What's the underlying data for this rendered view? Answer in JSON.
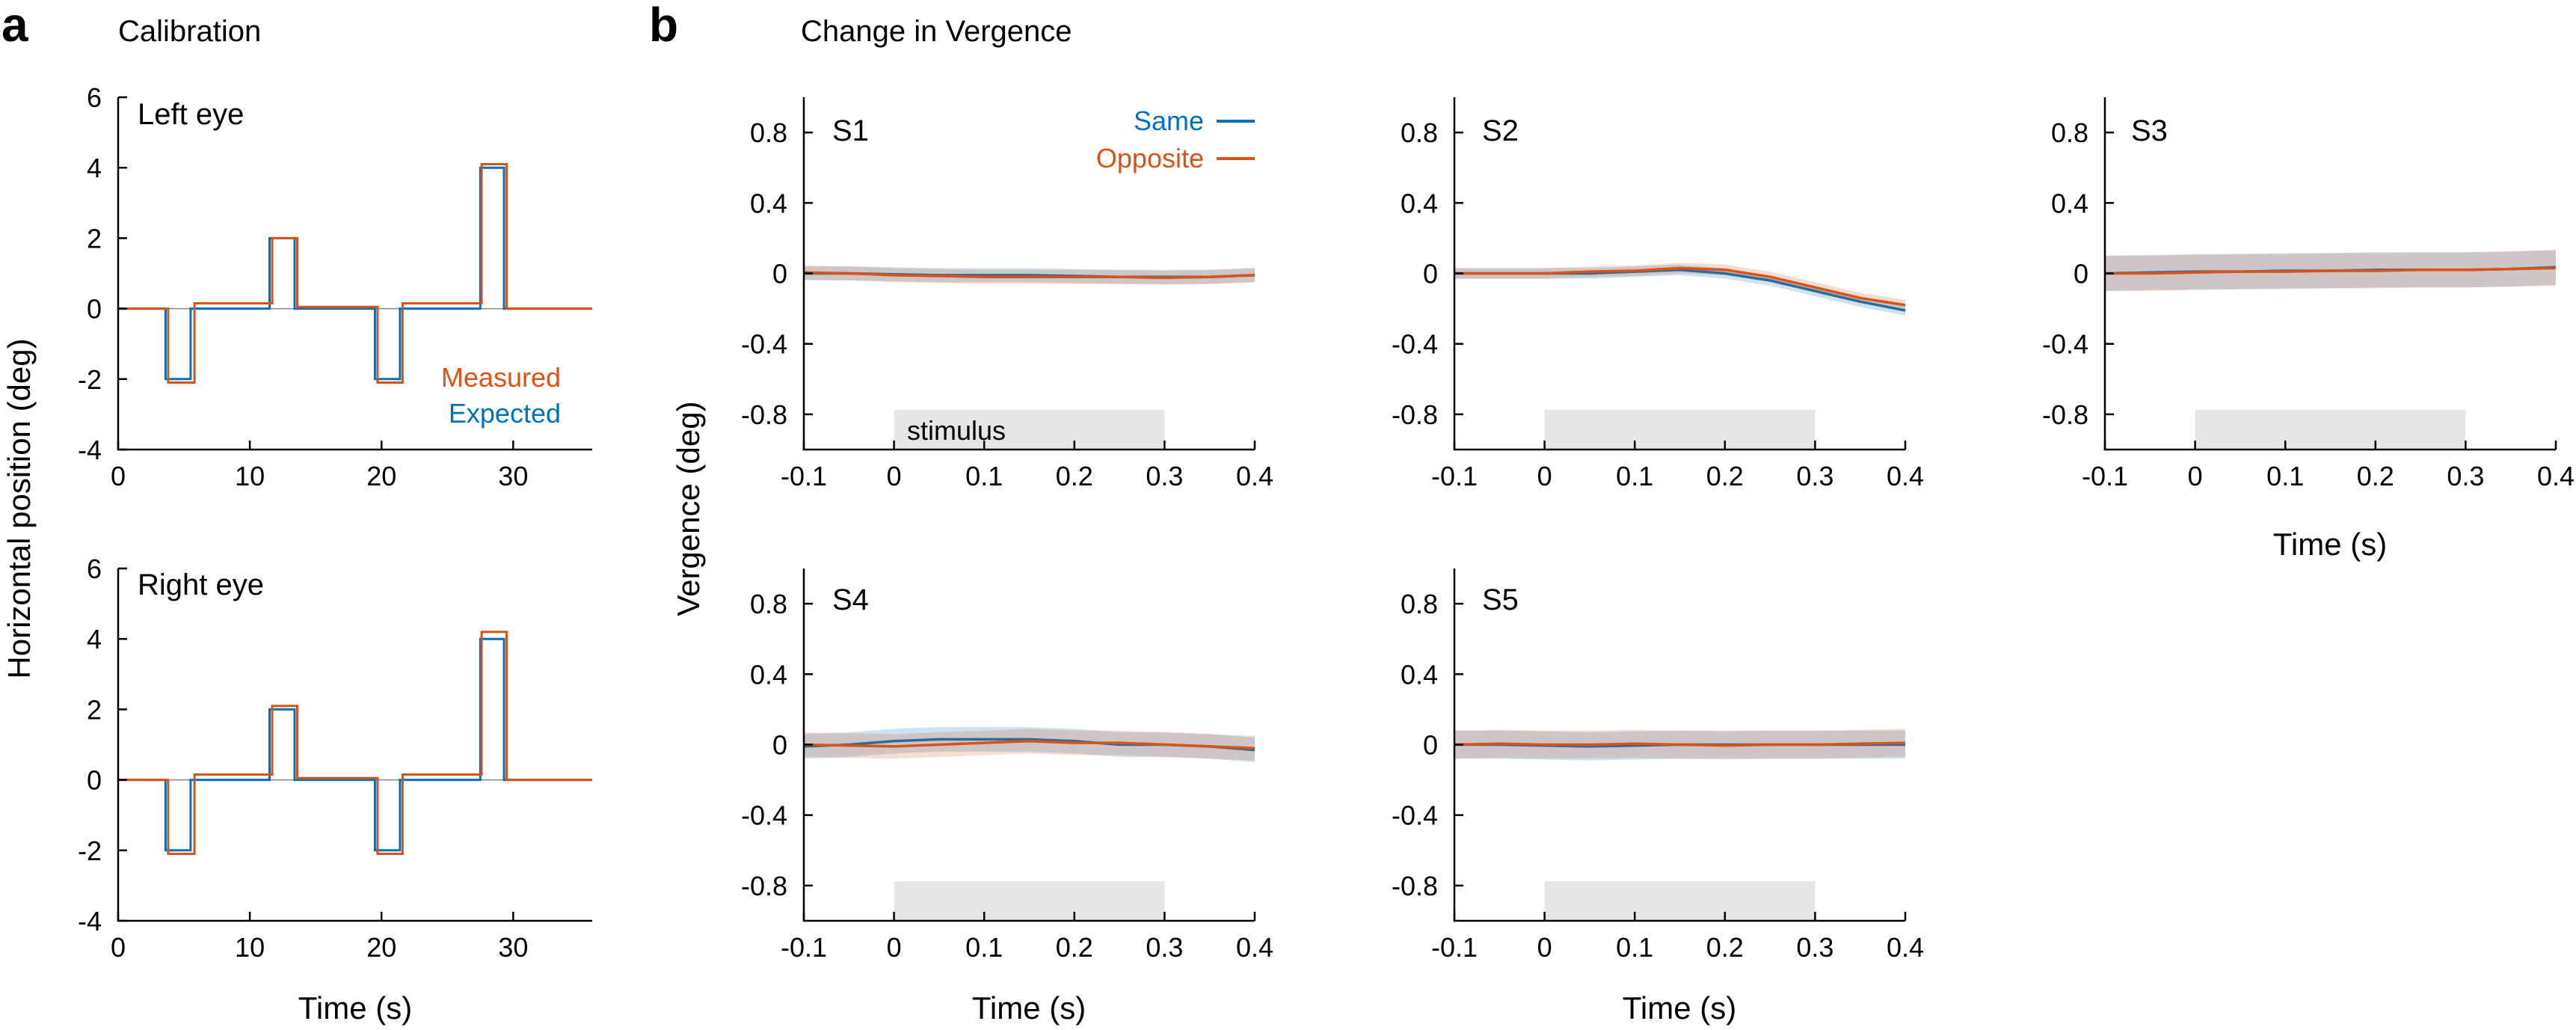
{
  "panel_a": {
    "letter": "a",
    "title": "Calibration",
    "ylabel": "Horizontal position (deg)",
    "xlabel": "Time (s)",
    "legend_measured": "Measured",
    "legend_expected": "Expected"
  },
  "panel_b": {
    "letter": "b",
    "title": "Change in Vergence",
    "ylabel": "Vergence (deg)",
    "xlabel": "Time (s)",
    "legend_same": "Same",
    "legend_opposite": "Opposite",
    "stimulus_label": "stimulus"
  },
  "colors": {
    "measured": "#d95319",
    "expected": "#0072bd",
    "same": "#0072bd",
    "opposite": "#d95319",
    "stimulus_bar": "#e6e6e6"
  },
  "chart_data": [
    {
      "id": "left-eye",
      "type": "line",
      "title": "Left eye",
      "xlabel": "",
      "ylabel": "Horizontal position (deg)",
      "xlim": [
        0,
        36
      ],
      "ylim": [
        -4,
        6
      ],
      "xticks": [
        0,
        10,
        20,
        30
      ],
      "yticks": [
        -4,
        -2,
        0,
        2,
        4,
        6
      ],
      "series": [
        {
          "name": "Expected",
          "step_x": [
            0,
            3.6,
            3.6,
            5.5,
            5.5,
            11.5,
            11.5,
            13.4,
            13.4,
            19.5,
            19.5,
            21.4,
            21.4,
            27.5,
            27.5,
            29.3,
            29.3,
            36
          ],
          "step_y": [
            0,
            0,
            -2,
            -2,
            0,
            0,
            2,
            2,
            0,
            0,
            -2,
            -2,
            0,
            0,
            4,
            4,
            0,
            0
          ]
        },
        {
          "name": "Measured",
          "step_x": [
            0,
            3.8,
            3.8,
            5.8,
            5.8,
            11.7,
            11.7,
            13.6,
            13.6,
            19.7,
            19.7,
            21.6,
            21.6,
            27.6,
            27.6,
            29.5,
            29.5,
            36
          ],
          "step_y": [
            0,
            0,
            -2.1,
            -2.1,
            0.15,
            0.15,
            2,
            2,
            0.05,
            0.05,
            -2.1,
            -2.1,
            0.15,
            0.15,
            4.1,
            4.1,
            0,
            0
          ]
        }
      ]
    },
    {
      "id": "right-eye",
      "type": "line",
      "title": "Right eye",
      "xlabel": "Time (s)",
      "ylabel": "Horizontal position (deg)",
      "xlim": [
        0,
        36
      ],
      "ylim": [
        -4,
        6
      ],
      "xticks": [
        0,
        10,
        20,
        30
      ],
      "yticks": [
        -4,
        -2,
        0,
        2,
        4,
        6
      ],
      "series": [
        {
          "name": "Expected",
          "step_x": [
            0,
            3.6,
            3.6,
            5.5,
            5.5,
            11.5,
            11.5,
            13.4,
            13.4,
            19.5,
            19.5,
            21.4,
            21.4,
            27.5,
            27.5,
            29.3,
            29.3,
            36
          ],
          "step_y": [
            0,
            0,
            -2,
            -2,
            0,
            0,
            2,
            2,
            0,
            0,
            -2,
            -2,
            0,
            0,
            4,
            4,
            0,
            0
          ]
        },
        {
          "name": "Measured",
          "step_x": [
            0,
            3.8,
            3.8,
            5.8,
            5.8,
            11.7,
            11.7,
            13.6,
            13.6,
            19.7,
            19.7,
            21.6,
            21.6,
            27.6,
            27.6,
            29.5,
            29.5,
            36
          ],
          "step_y": [
            0,
            0,
            -2.1,
            -2.1,
            0.15,
            0.15,
            2.1,
            2.1,
            0.05,
            0.05,
            -2.1,
            -2.1,
            0.15,
            0.15,
            4.2,
            4.2,
            0,
            0
          ]
        }
      ]
    },
    {
      "id": "S1",
      "type": "line",
      "title": "S1",
      "xlabel": "",
      "ylabel": "",
      "xlim": [
        -0.1,
        0.4
      ],
      "ylim": [
        -1,
        1
      ],
      "xticks": [
        -0.1,
        0,
        0.1,
        0.2,
        0.3,
        0.4
      ],
      "yticks": [
        -0.8,
        -0.4,
        0,
        0.4,
        0.8
      ],
      "stimulus": [
        0,
        0.3
      ],
      "x": [
        -0.1,
        -0.05,
        0,
        0.05,
        0.1,
        0.15,
        0.2,
        0.25,
        0.3,
        0.35,
        0.4
      ],
      "series": [
        {
          "name": "Same",
          "values": [
            0,
            0,
            -0.005,
            -0.01,
            -0.01,
            -0.01,
            -0.015,
            -0.02,
            -0.02,
            -0.02,
            -0.01
          ],
          "band": 0.04
        },
        {
          "name": "Opposite",
          "values": [
            0.005,
            0,
            -0.01,
            -0.015,
            -0.02,
            -0.02,
            -0.02,
            -0.02,
            -0.025,
            -0.02,
            -0.01
          ],
          "band": 0.04
        }
      ]
    },
    {
      "id": "S2",
      "type": "line",
      "title": "S2",
      "xlabel": "",
      "ylabel": "",
      "xlim": [
        -0.1,
        0.4
      ],
      "ylim": [
        -1,
        1
      ],
      "xticks": [
        -0.1,
        0,
        0.1,
        0.2,
        0.3,
        0.4
      ],
      "yticks": [
        -0.8,
        -0.4,
        0,
        0.4,
        0.8
      ],
      "stimulus": [
        0,
        0.3
      ],
      "x": [
        -0.1,
        -0.05,
        0,
        0.05,
        0.1,
        0.15,
        0.2,
        0.25,
        0.3,
        0.35,
        0.4
      ],
      "series": [
        {
          "name": "Same",
          "values": [
            0,
            0,
            0,
            0,
            0.01,
            0.02,
            0,
            -0.04,
            -0.1,
            -0.16,
            -0.21
          ],
          "band": 0.03
        },
        {
          "name": "Opposite",
          "values": [
            0,
            0,
            0,
            0.01,
            0.015,
            0.03,
            0.02,
            -0.02,
            -0.08,
            -0.14,
            -0.18
          ],
          "band": 0.03
        }
      ]
    },
    {
      "id": "S3",
      "type": "line",
      "title": "S3",
      "xlabel": "Time (s)",
      "ylabel": "",
      "xlim": [
        -0.1,
        0.4
      ],
      "ylim": [
        -1,
        1
      ],
      "xticks": [
        -0.1,
        0,
        0.1,
        0.2,
        0.3,
        0.4
      ],
      "yticks": [
        -0.8,
        -0.4,
        0,
        0.4,
        0.8
      ],
      "stimulus": [
        0,
        0.3
      ],
      "x": [
        -0.1,
        -0.05,
        0,
        0.05,
        0.1,
        0.15,
        0.2,
        0.25,
        0.3,
        0.35,
        0.4
      ],
      "series": [
        {
          "name": "Same",
          "values": [
            0,
            0.005,
            0.01,
            0.01,
            0.015,
            0.015,
            0.02,
            0.02,
            0.02,
            0.025,
            0.035
          ],
          "band": 0.1
        },
        {
          "name": "Opposite",
          "values": [
            0,
            0,
            0.005,
            0.01,
            0.01,
            0.015,
            0.015,
            0.02,
            0.02,
            0.025,
            0.03
          ],
          "band": 0.1
        }
      ]
    },
    {
      "id": "S4",
      "type": "line",
      "title": "S4",
      "xlabel": "Time (s)",
      "ylabel": "",
      "xlim": [
        -0.1,
        0.4
      ],
      "ylim": [
        -1,
        1
      ],
      "xticks": [
        -0.1,
        0,
        0.1,
        0.2,
        0.3,
        0.4
      ],
      "yticks": [
        -0.8,
        -0.4,
        0,
        0.4,
        0.8
      ],
      "stimulus": [
        0,
        0.3
      ],
      "x": [
        -0.1,
        -0.05,
        0,
        0.05,
        0.1,
        0.15,
        0.2,
        0.25,
        0.3,
        0.35,
        0.4
      ],
      "series": [
        {
          "name": "Same",
          "values": [
            -0.01,
            0,
            0.02,
            0.03,
            0.03,
            0.03,
            0.02,
            0,
            0,
            -0.01,
            -0.03
          ],
          "band": 0.07
        },
        {
          "name": "Opposite",
          "values": [
            0,
            -0.005,
            -0.01,
            0,
            0.01,
            0.02,
            0.01,
            0.01,
            0,
            -0.01,
            -0.02
          ],
          "band": 0.07
        }
      ]
    },
    {
      "id": "S5",
      "type": "line",
      "title": "S5",
      "xlabel": "Time (s)",
      "ylabel": "",
      "xlim": [
        -0.1,
        0.4
      ],
      "ylim": [
        -1,
        1
      ],
      "xticks": [
        -0.1,
        0,
        0.1,
        0.2,
        0.3,
        0.4
      ],
      "yticks": [
        -0.8,
        -0.4,
        0,
        0.4,
        0.8
      ],
      "stimulus": [
        0,
        0.3
      ],
      "x": [
        -0.1,
        -0.05,
        0,
        0.05,
        0.1,
        0.15,
        0.2,
        0.25,
        0.3,
        0.35,
        0.4
      ],
      "series": [
        {
          "name": "Same",
          "values": [
            0,
            0,
            -0.005,
            -0.01,
            -0.005,
            0,
            0,
            0,
            0,
            0,
            0
          ],
          "band": 0.08
        },
        {
          "name": "Opposite",
          "values": [
            0,
            0.005,
            0,
            0,
            0.005,
            0,
            -0.005,
            0,
            0,
            0.005,
            0.01
          ],
          "band": 0.08
        }
      ]
    }
  ]
}
